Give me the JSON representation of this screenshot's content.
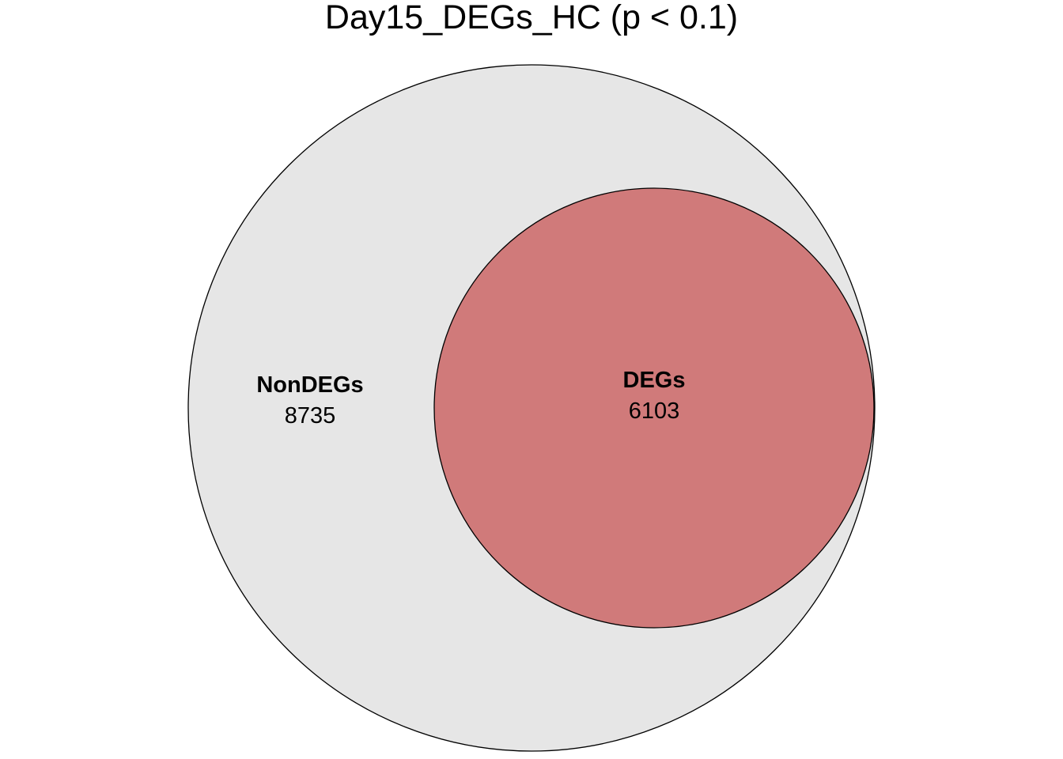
{
  "chart_data": {
    "type": "venn",
    "title": "Day15_DEGs_HC (p < 0.1)",
    "sets": [
      {
        "name": "NonDEGs",
        "count_label": "8735",
        "value": 8735,
        "color": "#e6e6e6"
      },
      {
        "name": "DEGs",
        "count_label": "6103",
        "value": 6103,
        "color": "#d07a7a"
      }
    ],
    "relationship": "DEGs set nested inside NonDEGs circle",
    "outline_color": "#000000"
  }
}
